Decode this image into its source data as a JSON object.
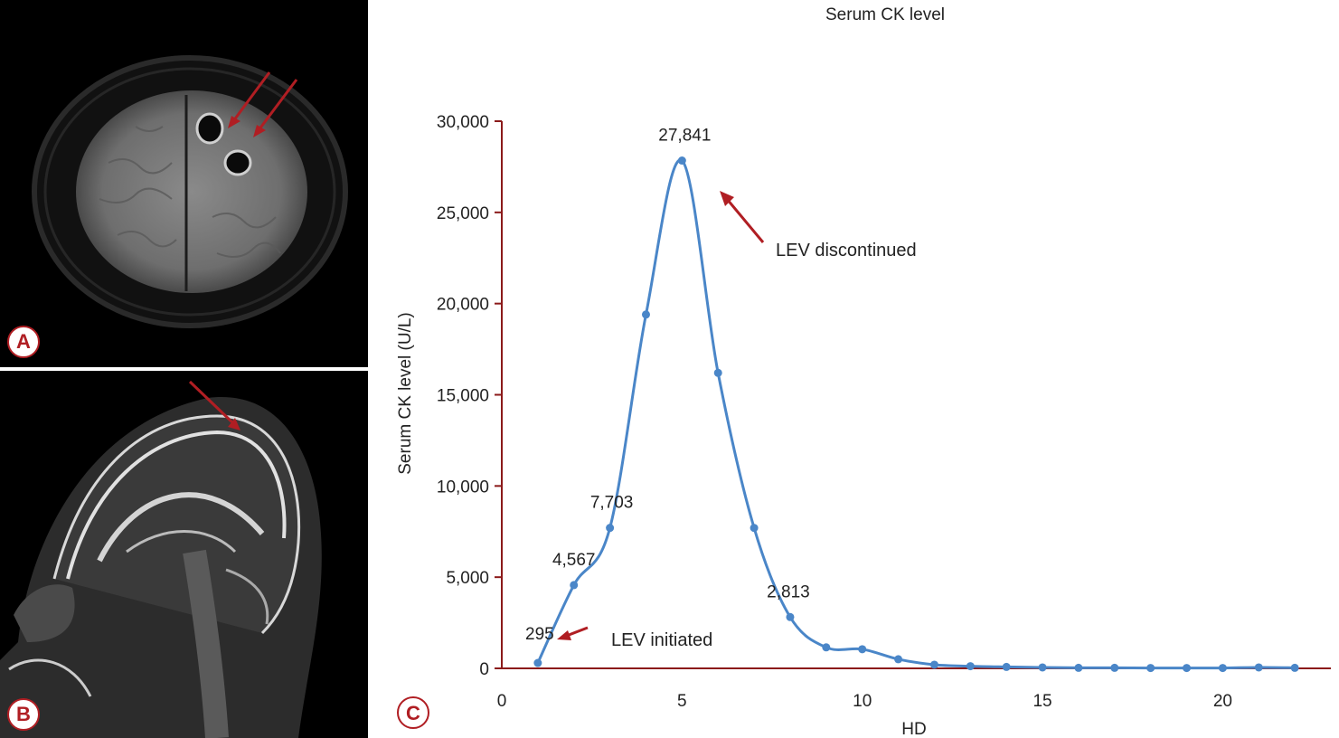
{
  "panels": {
    "a_label": "A",
    "b_label": "B",
    "c_label": "C"
  },
  "colors": {
    "line": "#4a86c8",
    "axis": "#8b1a1a",
    "arrow": "#b01e23",
    "badge": "#b01e23"
  },
  "chart_data": {
    "type": "line",
    "title": "Serum CK level",
    "xlabel": "HD",
    "ylabel": "Serum CK level (U/L)",
    "xlim": [
      0,
      23
    ],
    "ylim": [
      0,
      30000
    ],
    "x_ticks": [
      "0",
      "5",
      "10",
      "15",
      "20"
    ],
    "y_ticks": [
      "0",
      "5,000",
      "10,000",
      "15,000",
      "20,000",
      "25,000",
      "30,000"
    ],
    "grid": false,
    "series": [
      {
        "x": [
          1,
          2,
          3,
          4,
          5,
          6,
          7,
          8,
          9,
          10,
          11,
          12,
          13,
          14,
          15,
          16,
          17,
          18,
          19,
          20,
          21,
          22
        ],
        "values": [
          295,
          4567,
          7703,
          19400,
          27841,
          16200,
          7700,
          2813,
          1150,
          1050,
          500,
          200,
          120,
          80,
          50,
          30,
          30,
          20,
          20,
          20,
          50,
          30
        ]
      }
    ],
    "data_labels": [
      {
        "x": 1,
        "y": 295,
        "text": "295"
      },
      {
        "x": 2,
        "y": 4567,
        "text": "4,567"
      },
      {
        "x": 3,
        "y": 7703,
        "text": "7,703"
      },
      {
        "x": 5,
        "y": 27841,
        "text": "27,841"
      },
      {
        "x": 8,
        "y": 2813,
        "text": "2,813"
      }
    ],
    "annotations": [
      {
        "text": "LEV discontinued"
      },
      {
        "text": "LEV initiated"
      }
    ]
  }
}
